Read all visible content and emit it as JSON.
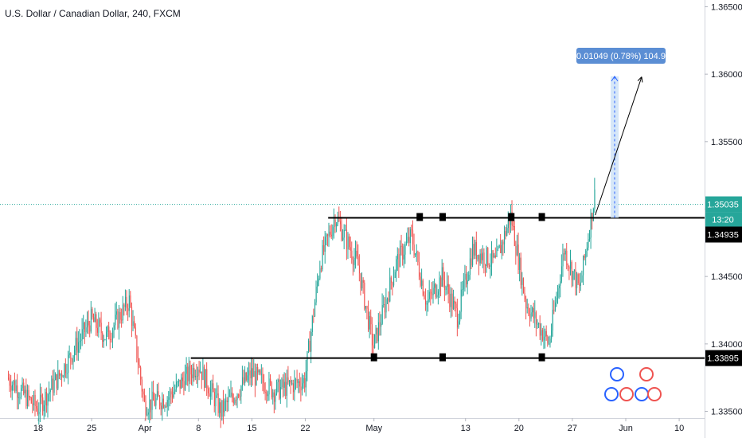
{
  "header": {
    "title": "U.S. Dollar / Canadian Dollar, 240, FXCM"
  },
  "colors": {
    "up": "#26a69a",
    "down": "#ef5350",
    "level_line": "#000000",
    "price_line": "#26a69a",
    "measure_fill": "#cfe3f7",
    "measure_label_bg": "#5b8ed4",
    "axis_text": "#131722",
    "grid": "#f0f3fa"
  },
  "chart_data": {
    "type": "candlestick",
    "x_ticks": [
      "18",
      "25",
      "Apr",
      "8",
      "15",
      "22",
      "May",
      "13",
      "20",
      "27",
      "Jun",
      "10"
    ],
    "y_ticks": [
      "1.36500",
      "1.36000",
      "1.35500",
      "1.35000",
      "1.34500",
      "1.34000",
      "1.33500"
    ],
    "ylim": [
      1.3345,
      1.3655
    ],
    "grid": false,
    "levels": [
      {
        "price": 1.34935,
        "label": "1.34935"
      },
      {
        "price": 1.33895,
        "label": "1.33895"
      }
    ],
    "current_price": {
      "price": 1.35035,
      "label": "1.35035",
      "countdown": "13:20"
    },
    "measure": {
      "label": "0.01049 (0.78%) 104.9",
      "from": 1.34935,
      "to": 1.35984
    },
    "projection": {
      "from_date": "May 30",
      "from_price": 1.34955,
      "to_date": "Jun 3",
      "to_price": 1.3598
    },
    "touch_markers": [
      {
        "date": "May 1",
        "price": 1.33895
      },
      {
        "date": "May 7",
        "price": 1.34935
      },
      {
        "date": "May 10",
        "price": 1.34935
      },
      {
        "date": "May 10",
        "price": 1.33895
      },
      {
        "date": "May 19",
        "price": 1.34935
      },
      {
        "date": "May 23",
        "price": 1.33895
      },
      {
        "date": "May 23",
        "price": 1.34935
      }
    ],
    "ohlc_key": [
      {
        "date": "Mar 14",
        "price": 1.3375
      },
      {
        "date": "Mar 18",
        "price": 1.3352
      },
      {
        "date": "Mar 21",
        "price": 1.3378
      },
      {
        "date": "Mar 25",
        "price": 1.3418
      },
      {
        "date": "Mar 27",
        "price": 1.3405
      },
      {
        "date": "Mar 30",
        "price": 1.3432
      },
      {
        "date": "Apr 1",
        "price": 1.3355
      },
      {
        "date": "Apr 4",
        "price": 1.336
      },
      {
        "date": "Apr 8",
        "price": 1.3385
      },
      {
        "date": "Apr 11",
        "price": 1.335
      },
      {
        "date": "Apr 15",
        "price": 1.3378
      },
      {
        "date": "Apr 18",
        "price": 1.3365
      },
      {
        "date": "Apr 22",
        "price": 1.3373
      },
      {
        "date": "Apr 24",
        "price": 1.346
      },
      {
        "date": "Apr 26",
        "price": 1.3495
      },
      {
        "date": "Apr 29",
        "price": 1.3458
      },
      {
        "date": "May 1",
        "price": 1.3398
      },
      {
        "date": "May 4",
        "price": 1.346
      },
      {
        "date": "May 6",
        "price": 1.348
      },
      {
        "date": "May 8",
        "price": 1.343
      },
      {
        "date": "May 10",
        "price": 1.345
      },
      {
        "date": "May 12",
        "price": 1.342
      },
      {
        "date": "May 14",
        "price": 1.347
      },
      {
        "date": "May 17",
        "price": 1.346
      },
      {
        "date": "May 19",
        "price": 1.3495
      },
      {
        "date": "May 21",
        "price": 1.343
      },
      {
        "date": "May 24",
        "price": 1.34
      },
      {
        "date": "May 26",
        "price": 1.347
      },
      {
        "date": "May 28",
        "price": 1.344
      },
      {
        "date": "May 30",
        "price": 1.351
      }
    ]
  }
}
